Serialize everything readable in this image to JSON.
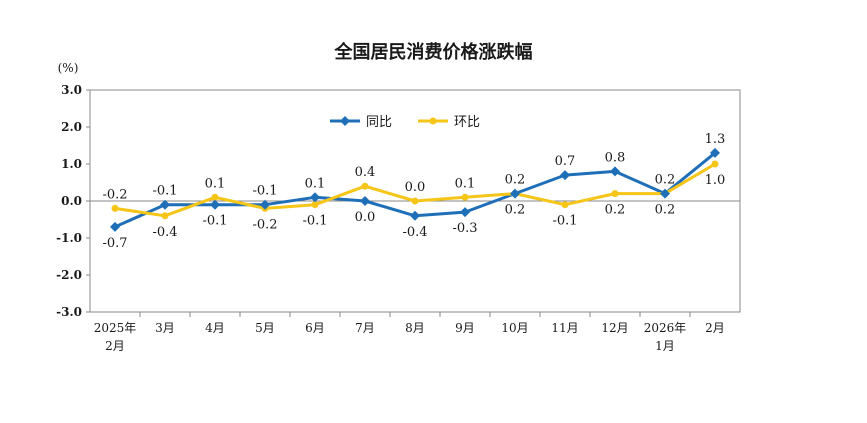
{
  "colors": {
    "yoy": "#1f6fb8",
    "mom": "#f5c518",
    "axis": "#555555",
    "frame": "#8a8a8a",
    "text": "#1a1a1a"
  },
  "chart_data": {
    "type": "line",
    "title": "全国居民消费价格涨跌幅",
    "ylabel": "(%)",
    "xlabel": "",
    "ylim": [
      -3.0,
      3.0
    ],
    "yticks": [
      "3.0",
      "2.0",
      "1.0",
      "0.0",
      "-1.0",
      "-2.0",
      "-3.0"
    ],
    "ytick_values": [
      3,
      2,
      1,
      0,
      -1,
      -2,
      -3
    ],
    "grid": false,
    "legend_position": "top-center",
    "categories": [
      [
        "2025年",
        "2月"
      ],
      [
        "3月"
      ],
      [
        "4月"
      ],
      [
        "5月"
      ],
      [
        "6月"
      ],
      [
        "7月"
      ],
      [
        "8月"
      ],
      [
        "9月"
      ],
      [
        "10月"
      ],
      [
        "11月"
      ],
      [
        "12月"
      ],
      [
        "2026年",
        "1月"
      ],
      [
        "2月"
      ]
    ],
    "series": [
      {
        "name": "同比",
        "color_key": "yoy",
        "marker": "diamond",
        "values": [
          -0.7,
          -0.1,
          -0.1,
          -0.1,
          0.1,
          0.0,
          -0.4,
          -0.3,
          0.2,
          0.7,
          0.8,
          0.2,
          1.3
        ],
        "labels": [
          "-0.7",
          "-0.1",
          "-0.1",
          "-0.1",
          "0.1",
          "0.0",
          "-0.4",
          "-0.3",
          "0.2",
          "0.7",
          "0.8",
          "0.2",
          "1.3"
        ],
        "label_side": [
          "below",
          "above",
          "below",
          "above",
          "above",
          "below",
          "below",
          "below",
          "above",
          "above",
          "above",
          "above",
          "above"
        ]
      },
      {
        "name": "环比",
        "color_key": "mom",
        "marker": "circle",
        "values": [
          -0.2,
          -0.4,
          0.1,
          -0.2,
          -0.1,
          0.4,
          0.0,
          0.1,
          0.2,
          -0.1,
          0.2,
          0.2,
          1.0
        ],
        "labels": [
          "-0.2",
          "-0.4",
          "0.1",
          "-0.2",
          "-0.1",
          "0.4",
          "0.0",
          "0.1",
          "0.2",
          "-0.1",
          "0.2",
          "0.2",
          "1.0"
        ],
        "label_side": [
          "above",
          "below",
          "above",
          "below",
          "below",
          "above",
          "above",
          "above",
          "below",
          "below",
          "below",
          "below",
          "below"
        ]
      }
    ]
  }
}
